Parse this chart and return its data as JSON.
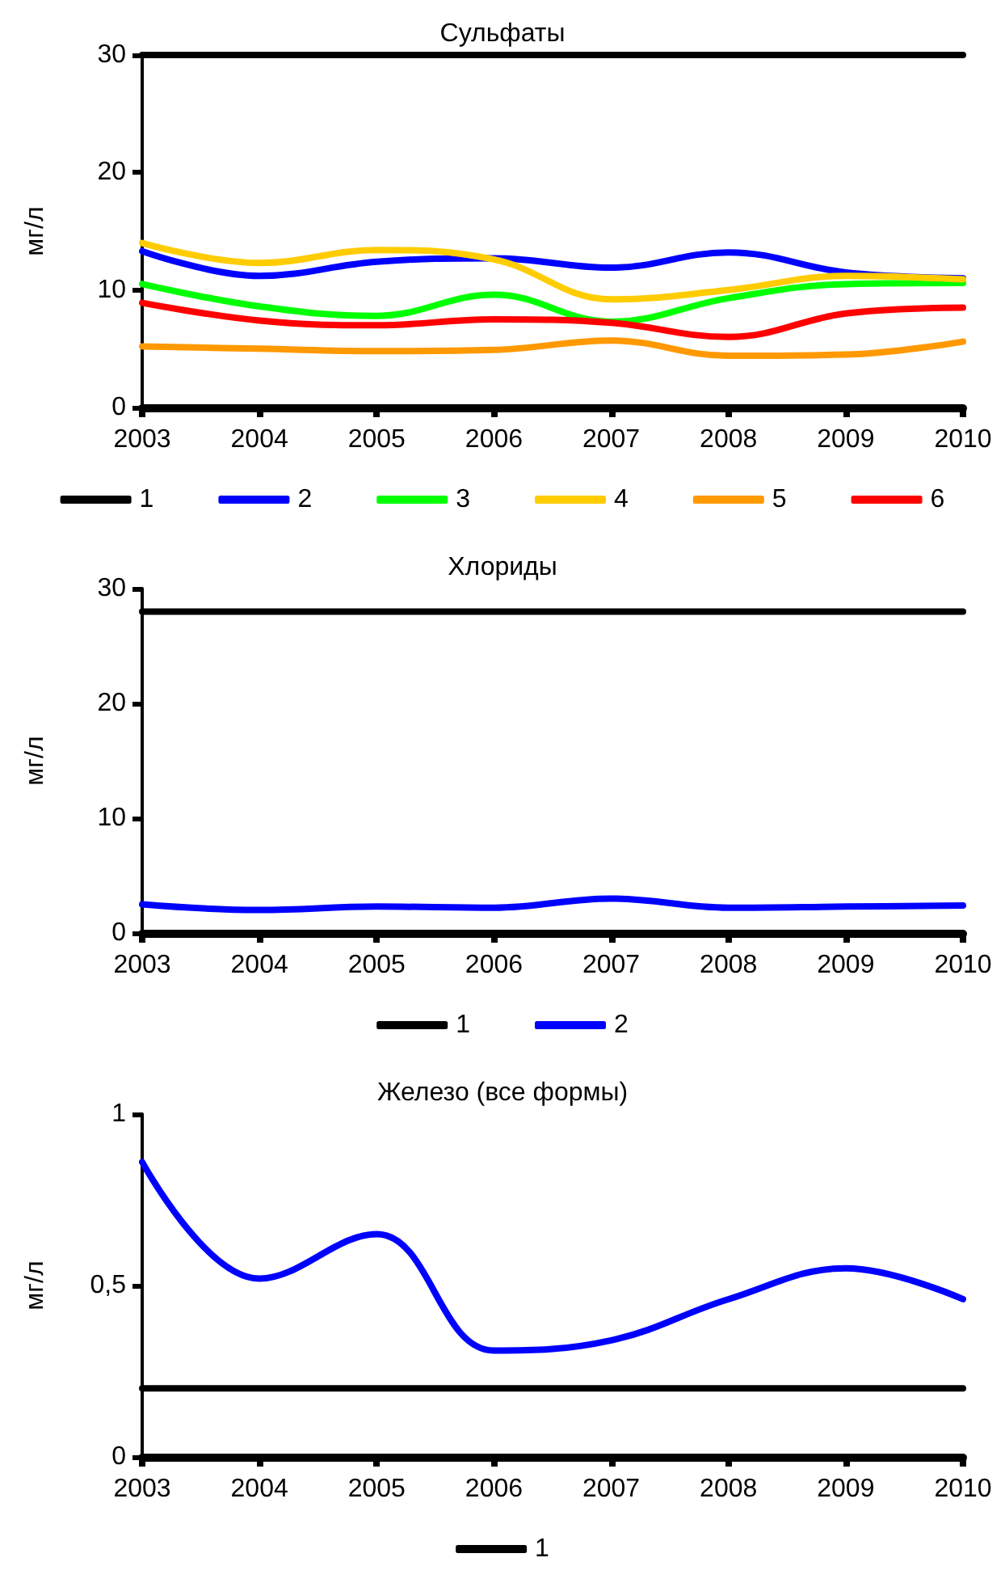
{
  "chart_data": [
    {
      "type": "line",
      "title": "Сульфаты",
      "ylabel": "мг/л",
      "categories": [
        "2003",
        "2004",
        "2005",
        "2006",
        "2007",
        "2008",
        "2009",
        "2010"
      ],
      "ylim": [
        0,
        30
      ],
      "yticks": [
        0,
        10,
        20,
        30
      ],
      "grid": false,
      "legend": "bottom",
      "marker": "none",
      "line_style": "solid",
      "series": [
        {
          "name": "1",
          "color": "#000000",
          "values": [
            30,
            30,
            30,
            30,
            30,
            30,
            30,
            30
          ]
        },
        {
          "name": "2",
          "color": "#0000ff",
          "values": [
            13.3,
            11.2,
            12.4,
            12.7,
            11.9,
            13.2,
            11.5,
            11.0
          ]
        },
        {
          "name": "3",
          "color": "#00ff00",
          "values": [
            10.5,
            8.6,
            7.8,
            9.6,
            7.3,
            9.3,
            10.5,
            10.6
          ]
        },
        {
          "name": "4",
          "color": "#ffcc00",
          "values": [
            14.0,
            12.3,
            13.4,
            12.6,
            9.2,
            10.0,
            11.2,
            10.9
          ]
        },
        {
          "name": "5",
          "color": "#ff9900",
          "values": [
            5.2,
            5.0,
            4.8,
            4.9,
            5.7,
            4.4,
            4.5,
            5.6
          ]
        },
        {
          "name": "6",
          "color": "#ff0000",
          "values": [
            8.9,
            7.4,
            7.0,
            7.5,
            7.2,
            6.0,
            8.0,
            8.5
          ]
        }
      ]
    },
    {
      "type": "line",
      "title": "Хлориды",
      "ylabel": "мг/л",
      "categories": [
        "2003",
        "2004",
        "2005",
        "2006",
        "2007",
        "2008",
        "2009",
        "2010"
      ],
      "ylim": [
        0,
        30
      ],
      "yticks": [
        0,
        10,
        20,
        30
      ],
      "grid": false,
      "legend": "bottom",
      "marker": "none",
      "line_style": "solid",
      "series": [
        {
          "name": "1",
          "color": "#000000",
          "values": [
            28,
            28,
            28,
            28,
            28,
            28,
            28,
            28
          ]
        },
        {
          "name": "2",
          "color": "#0000ff",
          "values": [
            2.5,
            2.0,
            2.3,
            2.2,
            3.0,
            2.2,
            2.3,
            2.4
          ]
        }
      ]
    },
    {
      "type": "line",
      "title": "Железо (все формы)",
      "ylabel": "мг/л",
      "categories": [
        "2003",
        "2004",
        "2005",
        "2006",
        "2007",
        "2008",
        "2009",
        "2010"
      ],
      "ylim": [
        0,
        1
      ],
      "yticks": [
        0,
        {
          "value": 0.5,
          "label": "0,5"
        },
        1
      ],
      "grid": false,
      "legend": "bottom",
      "marker": "none",
      "line_style": "solid",
      "series": [
        {
          "name": "1",
          "color": "#000000",
          "values": [
            0.2,
            0.2,
            0.2,
            0.2,
            0.2,
            0.2,
            0.2,
            0.2
          ]
        },
        {
          "color": "#0000ff",
          "values": [
            0.86,
            0.52,
            0.65,
            0.31,
            0.34,
            0.46,
            0.55,
            0.46
          ]
        }
      ]
    }
  ]
}
